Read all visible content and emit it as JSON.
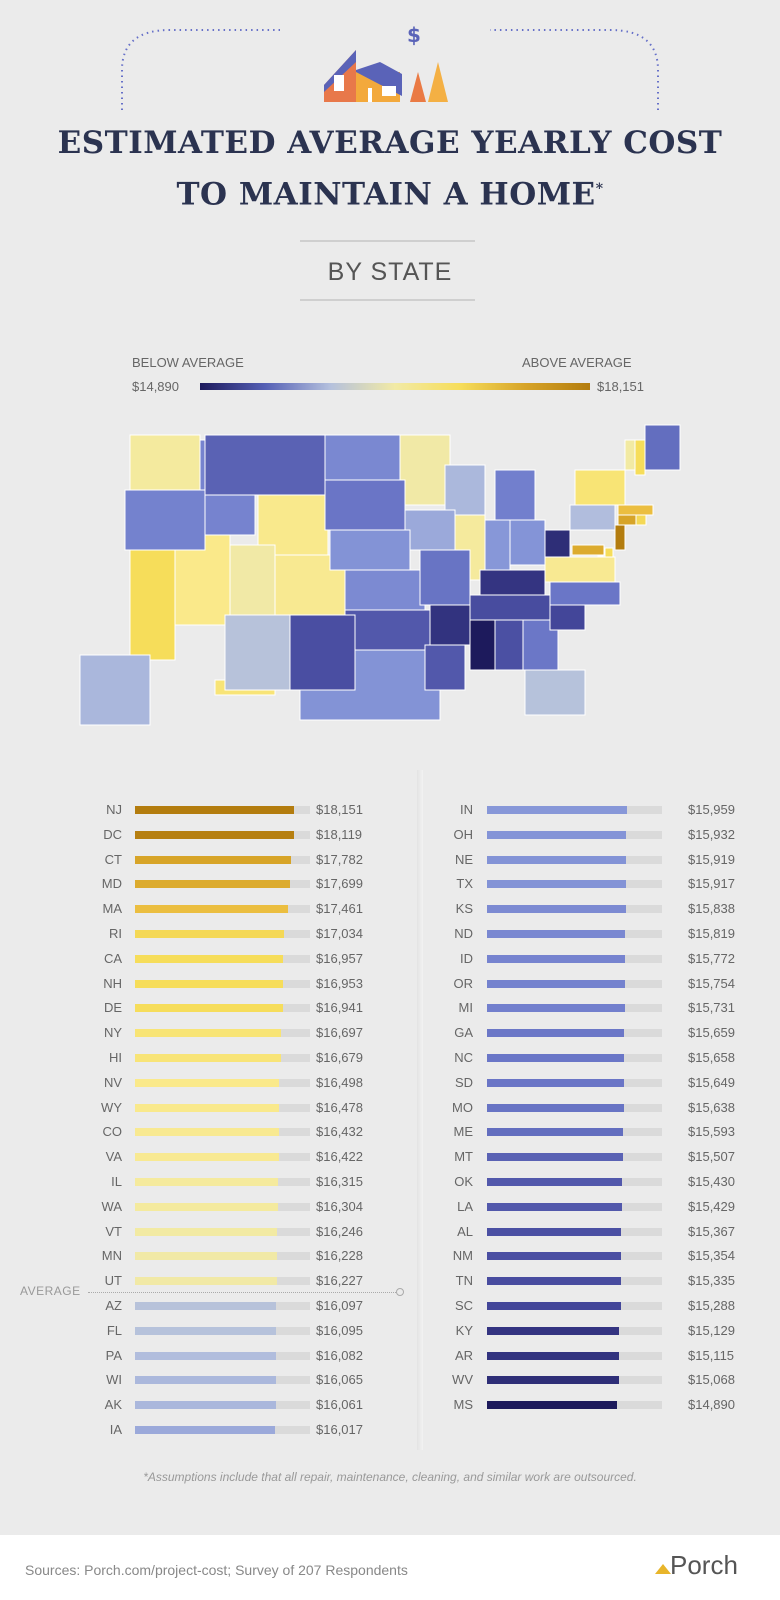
{
  "header": {
    "icon": "house-with-dollar-icon",
    "title_line1": "ESTIMATED AVERAGE YEARLY COST",
    "title_line2": "TO MAINTAIN A HOME",
    "title_mark": "*",
    "subtitle": "BY STATE"
  },
  "legend": {
    "below_label": "BELOW AVERAGE",
    "above_label": "ABOVE AVERAGE",
    "min_label": "$14,890",
    "max_label": "$18,151"
  },
  "chart_data": {
    "type": "bar",
    "orientation": "horizontal",
    "average_label": "AVERAGE",
    "color_scale": {
      "low": "#1d1a5c",
      "mid_low": "#b4c0dd",
      "mid_high": "#f2eaa5",
      "high": "#b37c0e"
    },
    "left_column": [
      {
        "state": "NJ",
        "value": 18151,
        "label": "$18,151"
      },
      {
        "state": "DC",
        "value": 18119,
        "label": "$18,119"
      },
      {
        "state": "CT",
        "value": 17782,
        "label": "$17,782"
      },
      {
        "state": "MD",
        "value": 17699,
        "label": "$17,699"
      },
      {
        "state": "MA",
        "value": 17461,
        "label": "$17,461"
      },
      {
        "state": "RI",
        "value": 17034,
        "label": "$17,034"
      },
      {
        "state": "CA",
        "value": 16957,
        "label": "$16,957"
      },
      {
        "state": "NH",
        "value": 16953,
        "label": "$16,953"
      },
      {
        "state": "DE",
        "value": 16941,
        "label": "$16,941"
      },
      {
        "state": "NY",
        "value": 16697,
        "label": "$16,697"
      },
      {
        "state": "HI",
        "value": 16679,
        "label": "$16,679"
      },
      {
        "state": "NV",
        "value": 16498,
        "label": "$16,498"
      },
      {
        "state": "WY",
        "value": 16478,
        "label": "$16,478"
      },
      {
        "state": "CO",
        "value": 16432,
        "label": "$16,432"
      },
      {
        "state": "VA",
        "value": 16422,
        "label": "$16,422"
      },
      {
        "state": "IL",
        "value": 16315,
        "label": "$16,315"
      },
      {
        "state": "WA",
        "value": 16304,
        "label": "$16,304"
      },
      {
        "state": "VT",
        "value": 16246,
        "label": "$16,246"
      },
      {
        "state": "MN",
        "value": 16228,
        "label": "$16,228"
      },
      {
        "state": "UT",
        "value": 16227,
        "label": "$16,227"
      },
      {
        "state": "AZ",
        "value": 16097,
        "label": "$16,097"
      },
      {
        "state": "FL",
        "value": 16095,
        "label": "$16,095"
      },
      {
        "state": "PA",
        "value": 16082,
        "label": "$16,082"
      },
      {
        "state": "WI",
        "value": 16065,
        "label": "$16,065"
      },
      {
        "state": "AK",
        "value": 16061,
        "label": "$16,061"
      },
      {
        "state": "IA",
        "value": 16017,
        "label": "$16,017"
      }
    ],
    "right_column": [
      {
        "state": "IN",
        "value": 15959,
        "label": "$15,959"
      },
      {
        "state": "OH",
        "value": 15932,
        "label": "$15,932"
      },
      {
        "state": "NE",
        "value": 15919,
        "label": "$15,919"
      },
      {
        "state": "TX",
        "value": 15917,
        "label": "$15,917"
      },
      {
        "state": "KS",
        "value": 15838,
        "label": "$15,838"
      },
      {
        "state": "ND",
        "value": 15819,
        "label": "$15,819"
      },
      {
        "state": "ID",
        "value": 15772,
        "label": "$15,772"
      },
      {
        "state": "OR",
        "value": 15754,
        "label": "$15,754"
      },
      {
        "state": "MI",
        "value": 15731,
        "label": "$15,731"
      },
      {
        "state": "GA",
        "value": 15659,
        "label": "$15,659"
      },
      {
        "state": "NC",
        "value": 15658,
        "label": "$15,658"
      },
      {
        "state": "SD",
        "value": 15649,
        "label": "$15,649"
      },
      {
        "state": "MO",
        "value": 15638,
        "label": "$15,638"
      },
      {
        "state": "ME",
        "value": 15593,
        "label": "$15,593"
      },
      {
        "state": "MT",
        "value": 15507,
        "label": "$15,507"
      },
      {
        "state": "OK",
        "value": 15430,
        "label": "$15,430"
      },
      {
        "state": "LA",
        "value": 15429,
        "label": "$15,429"
      },
      {
        "state": "AL",
        "value": 15367,
        "label": "$15,367"
      },
      {
        "state": "NM",
        "value": 15354,
        "label": "$15,354"
      },
      {
        "state": "TN",
        "value": 15335,
        "label": "$15,335"
      },
      {
        "state": "SC",
        "value": 15288,
        "label": "$15,288"
      },
      {
        "state": "KY",
        "value": 15129,
        "label": "$15,129"
      },
      {
        "state": "AR",
        "value": 15115,
        "label": "$15,115"
      },
      {
        "state": "WV",
        "value": 15068,
        "label": "$15,068"
      },
      {
        "state": "MS",
        "value": 14890,
        "label": "$14,890"
      }
    ]
  },
  "footnote": "*Assumptions include that all repair, maintenance, cleaning, and similar work are outsourced.",
  "footer": {
    "sources": "Sources: Porch.com/project-cost; Survey of 207 Respondents",
    "brand": "Porch"
  }
}
